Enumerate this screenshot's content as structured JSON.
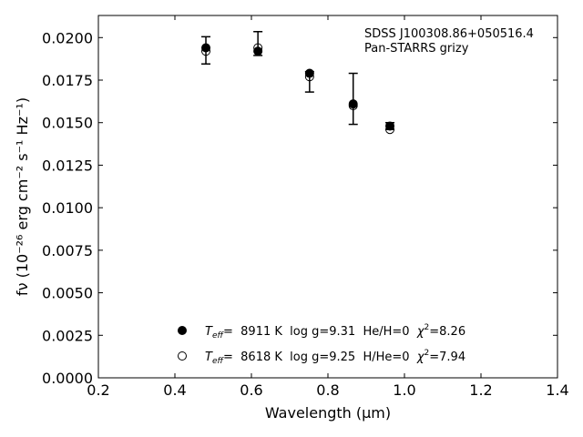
{
  "chart_data": {
    "type": "scatter",
    "title": "",
    "xlabel": "Wavelength (μm)",
    "ylabel": "fν (10⁻²⁶ erg cm⁻² s⁻¹ Hz⁻¹)",
    "xlim": [
      0.2,
      1.4
    ],
    "ylim": [
      0.0,
      0.0213
    ],
    "xticks": [
      0.2,
      0.4,
      0.6,
      0.8,
      1.0,
      1.2,
      1.4
    ],
    "xtick_labels": [
      "0.2",
      "0.4",
      "0.6",
      "0.8",
      "1.0",
      "1.2",
      "1.4"
    ],
    "yticks": [
      0.0,
      0.0025,
      0.005,
      0.0075,
      0.01,
      0.0125,
      0.015,
      0.0175,
      0.02
    ],
    "ytick_labels": [
      "0.0000",
      "0.0025",
      "0.0050",
      "0.0075",
      "0.0100",
      "0.0125",
      "0.0150",
      "0.0175",
      "0.0200"
    ],
    "annotation": [
      "SDSS J100308.86+050516.4",
      "Pan-STARRS grizy"
    ],
    "observed": {
      "x": [
        0.481,
        0.617,
        0.752,
        0.866,
        0.962
      ],
      "y": [
        0.01925,
        0.01965,
        0.0174,
        0.0164,
        0.0148
      ],
      "yerr": [
        0.0008,
        0.0007,
        0.0006,
        0.0015,
        0.0002
      ]
    },
    "series": [
      {
        "name": "Teff= 8911 K log g=9.31 He/H=0 χ²=8.26",
        "marker": "filled-circle",
        "x": [
          0.481,
          0.617,
          0.752,
          0.866,
          0.962
        ],
        "y": [
          0.0194,
          0.0192,
          0.0179,
          0.0161,
          0.0148
        ]
      },
      {
        "name": "Teff= 8618 K log g=9.25 H/He=0 χ²=7.94",
        "marker": "open-circle",
        "x": [
          0.481,
          0.617,
          0.752,
          0.866,
          0.962
        ],
        "y": [
          0.0192,
          0.0194,
          0.0177,
          0.016,
          0.0146
        ]
      }
    ],
    "legend_placement": "lower-center",
    "legend": [
      {
        "teff_label": "T",
        "teff_sub": "eff",
        "rest": "=  8911 K  log g=9.31  He/H=0  ",
        "chi": "χ",
        "chi_sup": "2",
        "chi_val": "=8.26"
      },
      {
        "teff_label": "T",
        "teff_sub": "eff",
        "rest": "=  8618 K  log g=9.25  H/He=0  ",
        "chi": "χ",
        "chi_sup": "2",
        "chi_val": "=7.94"
      }
    ],
    "grid": false
  }
}
